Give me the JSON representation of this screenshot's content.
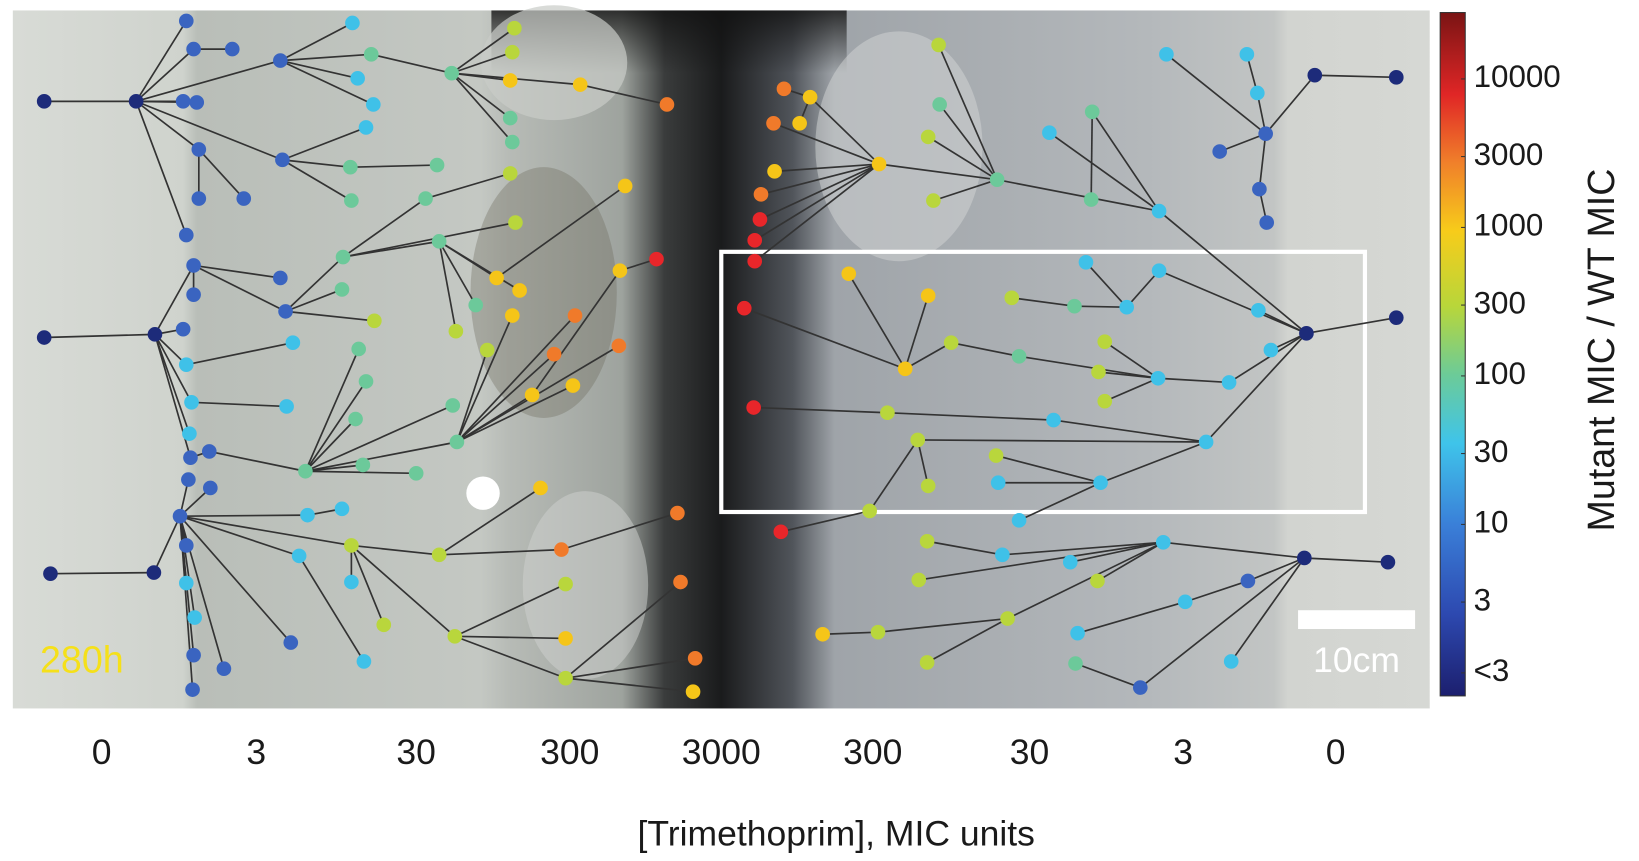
{
  "chart_data": {
    "type": "plate",
    "categories": [
      "0",
      "3",
      "30",
      "300",
      "3000",
      "300",
      "30",
      "3",
      "0"
    ],
    "x_label": "[Trimethoprim], MIC units",
    "time_label": "280h",
    "scale_bar_label": "10cm",
    "colorbar": {
      "title": "Mutant MIC / WT MIC",
      "log_scale": true,
      "clim": [
        0.7,
        28000
      ],
      "ticks": [
        10000,
        3000,
        1000,
        300,
        100,
        30,
        10,
        3,
        {
          "value": 1,
          "label": "<3"
        }
      ]
    }
  }
}
